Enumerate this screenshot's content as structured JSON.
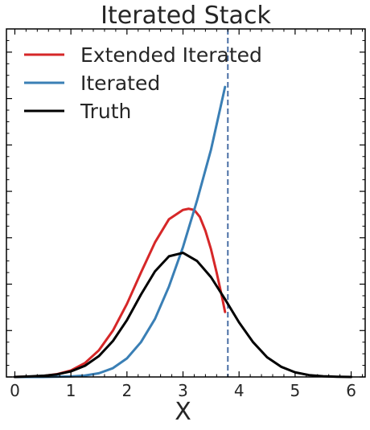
{
  "chart_data": {
    "type": "line",
    "title": "Iterated Stack",
    "xlabel": "X",
    "ylabel": "",
    "xlim": [
      -0.15,
      6.25
    ],
    "ylim": [
      0,
      1.5
    ],
    "xticks": [
      0,
      1,
      2,
      3,
      4,
      5,
      6
    ],
    "yticks_major": [
      0,
      0.2,
      0.4,
      0.6,
      0.8,
      1.0,
      1.2,
      1.4
    ],
    "ytick_labels_shown": false,
    "grid": false,
    "legend_position": "upper-left",
    "vline": {
      "x": 3.8,
      "color": "#4a6fa5",
      "style": "dashed"
    },
    "series": [
      {
        "name": "Extended Iterated",
        "color": "#d62728",
        "x": [
          0,
          0.25,
          0.5,
          0.75,
          1.0,
          1.25,
          1.5,
          1.75,
          2.0,
          2.25,
          2.5,
          2.75,
          3.0,
          3.1,
          3.2,
          3.3,
          3.4,
          3.5,
          3.6,
          3.7,
          3.75
        ],
        "y": [
          0.0,
          0.001,
          0.004,
          0.012,
          0.028,
          0.06,
          0.115,
          0.2,
          0.315,
          0.45,
          0.58,
          0.68,
          0.72,
          0.725,
          0.72,
          0.69,
          0.63,
          0.55,
          0.45,
          0.34,
          0.28
        ]
      },
      {
        "name": "Iterated",
        "color": "#3a7fb5",
        "x": [
          0,
          0.5,
          1.0,
          1.25,
          1.5,
          1.75,
          2.0,
          2.25,
          2.5,
          2.75,
          3.0,
          3.25,
          3.5,
          3.75
        ],
        "y": [
          0.0,
          0.0,
          0.002,
          0.006,
          0.016,
          0.038,
          0.08,
          0.15,
          0.25,
          0.39,
          0.56,
          0.76,
          0.98,
          1.25
        ]
      },
      {
        "name": "Truth",
        "color": "#000000",
        "x": [
          0,
          0.25,
          0.5,
          0.75,
          1.0,
          1.25,
          1.5,
          1.75,
          2.0,
          2.25,
          2.5,
          2.75,
          3.0,
          3.25,
          3.5,
          3.75,
          4.0,
          4.25,
          4.5,
          4.75,
          5.0,
          5.25,
          5.5,
          5.75,
          6.0
        ],
        "y": [
          0.0,
          0.002,
          0.005,
          0.011,
          0.024,
          0.048,
          0.09,
          0.155,
          0.245,
          0.355,
          0.455,
          0.52,
          0.535,
          0.5,
          0.43,
          0.335,
          0.235,
          0.15,
          0.085,
          0.044,
          0.02,
          0.008,
          0.003,
          0.001,
          0.0
        ]
      }
    ]
  }
}
